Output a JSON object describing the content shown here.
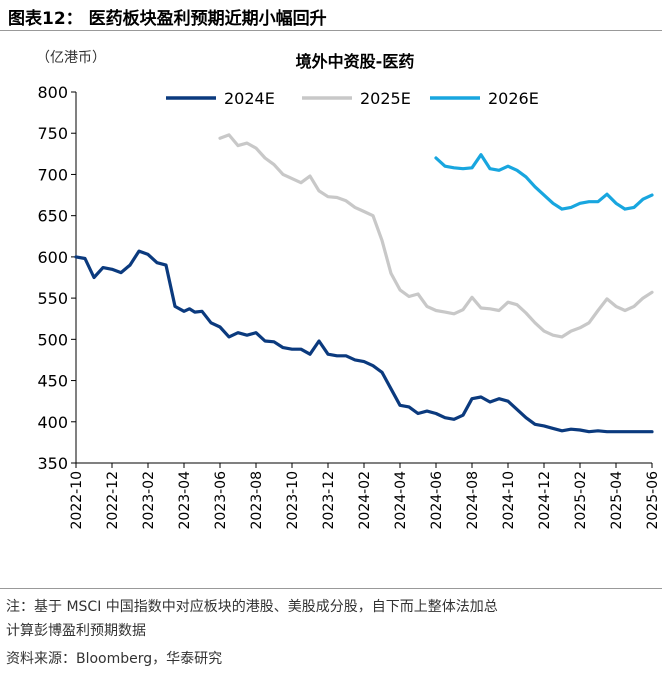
{
  "figure": {
    "title": "图表12：   医药板块盈利预期近期小幅回升",
    "note_line1": "注：基于 MSCI 中国指数中对应板块的港股、美股成分股，自下而上整体法加总",
    "note_line2": "计算彭博盈利预期数据",
    "source": "资料来源：Bloomberg，华泰研究"
  },
  "chart_data": {
    "type": "line",
    "title": "境外中资股-医药",
    "unit_label": "（亿港币）",
    "ylim": [
      350,
      800
    ],
    "yticks": [
      350,
      400,
      450,
      500,
      550,
      600,
      650,
      700,
      750,
      800
    ],
    "xlim": [
      0,
      32
    ],
    "x_tick_labels": [
      "2022-10",
      "2022-12",
      "2023-02",
      "2023-04",
      "2023-06",
      "2023-08",
      "2023-10",
      "2023-12",
      "2024-02",
      "2024-04",
      "2024-06",
      "2024-08",
      "2024-10",
      "2024-12",
      "2025-02",
      "2025-04",
      "2025-06"
    ],
    "legend": [
      "2024E",
      "2025E",
      "2026E"
    ],
    "series": [
      {
        "name": "2024E",
        "color": "#0b3a7e",
        "x": [
          0,
          0.5,
          1,
          1.5,
          2,
          2.5,
          3,
          3.5,
          4,
          4.5,
          5,
          5.5,
          6,
          6.3,
          6.6,
          7,
          7.5,
          8,
          8.5,
          9,
          9.5,
          10,
          10.5,
          11,
          11.5,
          12,
          12.5,
          13,
          13.5,
          14,
          14.5,
          15,
          15.5,
          16,
          16.5,
          17,
          17.5,
          18,
          18.5,
          19,
          19.5,
          20,
          20.5,
          21,
          21.5,
          22,
          22.5,
          23,
          23.5,
          24,
          24.5,
          25,
          25.5,
          26,
          26.5,
          27,
          27.5,
          28,
          28.5,
          29,
          29.5,
          30,
          30.5,
          31,
          31.5,
          32
        ],
        "values": [
          600,
          598,
          575,
          587,
          585,
          581,
          590,
          607,
          603,
          593,
          590,
          540,
          534,
          537,
          533,
          534,
          520,
          515,
          503,
          508,
          505,
          508,
          498,
          497,
          490,
          488,
          488,
          482,
          498,
          482,
          480,
          480,
          475,
          473,
          468,
          460,
          440,
          420,
          418,
          410,
          413,
          410,
          405,
          403,
          408,
          428,
          430,
          424,
          428,
          425,
          415,
          405,
          397,
          395,
          392,
          389,
          391,
          390,
          388,
          389,
          388,
          388,
          388,
          388,
          388,
          388
        ]
      },
      {
        "name": "2025E",
        "color": "#c8c8c8",
        "x": [
          8,
          8.5,
          9,
          9.5,
          10,
          10.5,
          11,
          11.5,
          12,
          12.5,
          13,
          13.5,
          14,
          14.5,
          15,
          15.5,
          16,
          16.5,
          17,
          17.5,
          18,
          18.5,
          19,
          19.5,
          20,
          20.5,
          21,
          21.5,
          22,
          22.5,
          23,
          23.5,
          24,
          24.5,
          25,
          25.5,
          26,
          26.5,
          27,
          27.5,
          28,
          28.5,
          29,
          29.5,
          30,
          30.5,
          31,
          31.5,
          32
        ],
        "values": [
          744,
          748,
          735,
          738,
          732,
          720,
          712,
          700,
          695,
          690,
          698,
          680,
          673,
          672,
          668,
          660,
          655,
          650,
          620,
          580,
          560,
          552,
          555,
          540,
          535,
          533,
          531,
          536,
          551,
          538,
          537,
          535,
          545,
          542,
          532,
          520,
          510,
          505,
          503,
          510,
          514,
          520,
          535,
          549,
          540,
          535,
          540,
          550,
          557
        ]
      },
      {
        "name": "2026E",
        "color": "#18a6df",
        "x": [
          20,
          20.5,
          21,
          21.5,
          22,
          22.5,
          23,
          23.5,
          24,
          24.5,
          25,
          25.5,
          26,
          26.5,
          27,
          27.5,
          28,
          28.5,
          29,
          29.5,
          30,
          30.5,
          31,
          31.5,
          32
        ],
        "values": [
          720,
          710,
          708,
          707,
          708,
          724,
          707,
          705,
          710,
          705,
          697,
          685,
          675,
          665,
          658,
          660,
          665,
          667,
          667,
          676,
          665,
          658,
          660,
          670,
          675
        ]
      }
    ]
  }
}
